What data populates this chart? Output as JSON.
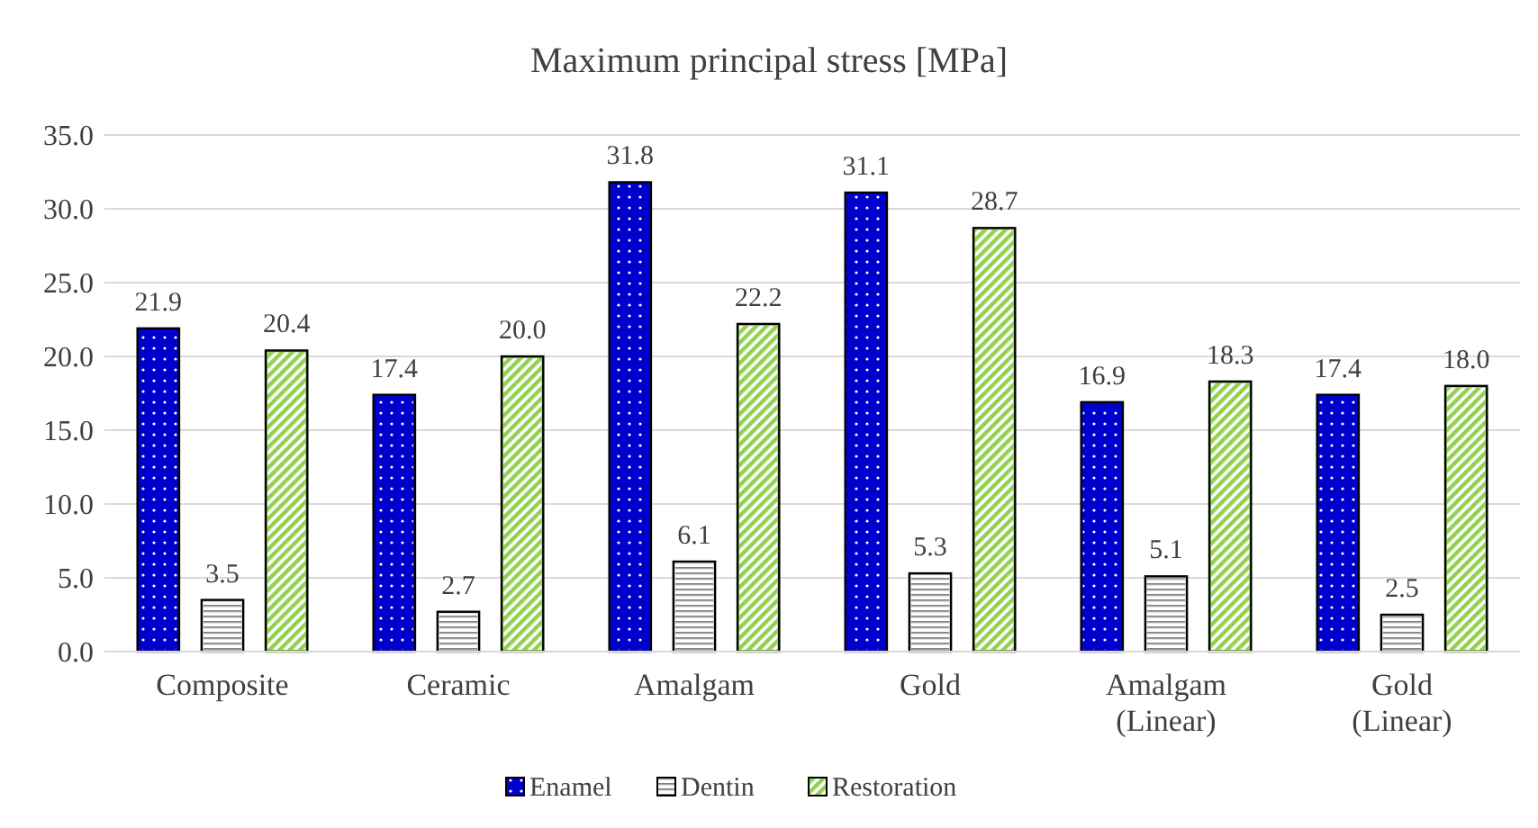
{
  "chart_data": {
    "type": "bar",
    "title": "Maximum principal stress [MPa]",
    "categories": [
      "Composite",
      "Ceramic",
      "Amalgam",
      "Gold",
      "Amalgam (Linear)",
      "Gold (Linear)"
    ],
    "series": [
      {
        "name": "Enamel",
        "color": "#0000cc",
        "values": [
          21.9,
          17.4,
          31.8,
          31.1,
          16.9,
          17.4
        ],
        "value_labels": [
          "21.9",
          "17.4",
          "31.8",
          "31.1",
          "16.9",
          "17.4"
        ]
      },
      {
        "name": "Dentin",
        "color": "#d9d9d9",
        "values": [
          3.5,
          2.7,
          6.1,
          5.3,
          5.1,
          2.5
        ],
        "value_labels": [
          "3.5",
          "2.7",
          "6.1",
          "5.3",
          "5.1",
          "2.5"
        ]
      },
      {
        "name": "Restoration",
        "color": "#92d050",
        "values": [
          20.4,
          20.0,
          22.2,
          28.7,
          18.3,
          18.0
        ],
        "value_labels": [
          "20.4",
          "20.0",
          "22.2",
          "28.7",
          "18.3",
          "18.0"
        ]
      }
    ],
    "ylim": [
      0,
      35
    ],
    "yticks": [
      {
        "value": 0,
        "label": "0.0"
      },
      {
        "value": 5,
        "label": "5.0"
      },
      {
        "value": 10,
        "label": "10.0"
      },
      {
        "value": 15,
        "label": "15.0"
      },
      {
        "value": 20,
        "label": "20.0"
      },
      {
        "value": 25,
        "label": "25.0"
      },
      {
        "value": 30,
        "label": "30.0"
      },
      {
        "value": 35,
        "label": "35.0"
      }
    ],
    "grid": "y",
    "legend": "bottom"
  }
}
